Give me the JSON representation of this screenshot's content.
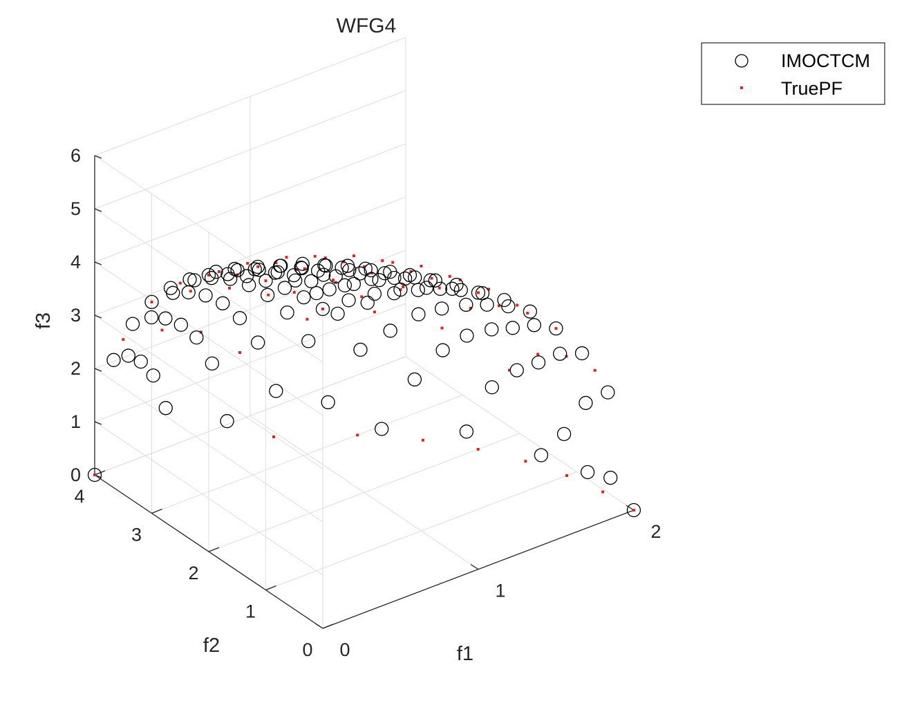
{
  "chart_data": {
    "type": "scatter3d",
    "title": "WFG4",
    "xlabel": "f1",
    "ylabel": "f2",
    "zlabel": "f3",
    "xlim": [
      0,
      2
    ],
    "ylim": [
      0,
      4
    ],
    "zlim": [
      0,
      6
    ],
    "xticks": [
      0,
      1,
      2
    ],
    "yticks": [
      0,
      1,
      2,
      3,
      4
    ],
    "zticks": [
      0,
      1,
      2,
      3,
      4,
      5,
      6
    ],
    "grid": true,
    "box": "back-planes",
    "legend_position": "top-right",
    "pareto_front": "ellipsoid (f1/2)^2 + (f2/4)^2 + (f3/6)^2 = 1, first octant, sampled on 13 x 13 grid",
    "series": [
      {
        "name": "IMOCTCM",
        "marker": "open-circle",
        "color": "#000000",
        "points": [
          [
            0.0,
            0.0,
            6.0
          ],
          [
            0.167,
            0.0,
            5.979
          ],
          [
            0.333,
            0.0,
            5.916
          ],
          [
            0.5,
            0.0,
            5.809
          ],
          [
            0.667,
            0.0,
            5.657
          ],
          [
            0.833,
            0.0,
            5.454
          ],
          [
            1.0,
            0.0,
            5.196
          ],
          [
            1.167,
            0.0,
            4.873
          ],
          [
            1.333,
            0.0,
            4.472
          ],
          [
            1.5,
            0.0,
            3.969
          ],
          [
            1.667,
            0.0,
            3.317
          ],
          [
            1.833,
            0.0,
            2.398
          ],
          [
            2.0,
            0.0,
            0.0
          ],
          [
            0.0,
            0.333,
            5.979
          ],
          [
            0.161,
            0.322,
            5.958
          ],
          [
            0.315,
            0.315,
            5.893
          ],
          [
            0.48,
            0.32,
            5.78
          ],
          [
            0.648,
            0.324,
            5.619
          ],
          [
            0.812,
            0.325,
            5.404
          ],
          [
            0.98,
            0.327,
            5.13
          ],
          [
            1.147,
            0.328,
            4.786
          ],
          [
            1.313,
            0.328,
            4.356
          ],
          [
            1.48,
            0.329,
            3.817
          ],
          [
            1.646,
            0.329,
            3.094
          ],
          [
            1.812,
            0.33,
            1.985
          ],
          [
            1.972,
            0.332,
            0.4
          ],
          [
            0.0,
            0.667,
            5.916
          ],
          [
            0.158,
            0.633,
            5.89
          ],
          [
            0.313,
            0.626,
            5.815
          ],
          [
            0.469,
            0.625,
            5.697
          ],
          [
            0.628,
            0.628,
            5.522
          ],
          [
            0.792,
            0.633,
            5.3
          ],
          [
            0.958,
            0.639,
            5.012
          ],
          [
            1.124,
            0.643,
            4.645
          ],
          [
            1.293,
            0.646,
            4.18
          ],
          [
            1.459,
            0.648,
            3.558
          ],
          [
            1.625,
            0.649,
            2.723
          ],
          [
            1.79,
            0.65,
            1.195
          ],
          [
            1.945,
            0.66,
            0.3
          ],
          [
            0.0,
            1.0,
            5.809
          ],
          [
            0.155,
            0.93,
            5.792
          ],
          [
            0.305,
            0.915,
            5.72
          ],
          [
            0.46,
            0.92,
            5.6
          ],
          [
            0.61,
            0.915,
            5.42
          ],
          [
            0.77,
            0.92,
            5.18
          ],
          [
            0.935,
            0.935,
            4.88
          ],
          [
            1.1,
            0.94,
            4.48
          ],
          [
            1.268,
            0.945,
            3.99
          ],
          [
            1.434,
            0.95,
            3.34
          ],
          [
            1.6,
            0.96,
            2.38
          ],
          [
            1.76,
            0.97,
            0.6
          ],
          [
            0.0,
            1.333,
            5.657
          ],
          [
            0.15,
            1.2,
            5.66
          ],
          [
            0.3,
            1.2,
            5.58
          ],
          [
            0.45,
            1.2,
            5.46
          ],
          [
            0.6,
            1.2,
            5.28
          ],
          [
            0.75,
            1.2,
            5.03
          ],
          [
            0.9,
            1.2,
            4.72
          ],
          [
            1.06,
            1.22,
            4.3
          ],
          [
            1.22,
            1.24,
            3.76
          ],
          [
            1.385,
            1.25,
            3.06
          ],
          [
            1.55,
            1.26,
            1.9
          ],
          [
            0.0,
            1.667,
            5.454
          ],
          [
            0.14,
            1.5,
            5.5
          ],
          [
            0.28,
            1.5,
            5.42
          ],
          [
            0.42,
            1.5,
            5.3
          ],
          [
            0.57,
            1.5,
            5.1
          ],
          [
            0.72,
            1.5,
            4.85
          ],
          [
            0.87,
            1.52,
            4.5
          ],
          [
            1.02,
            1.53,
            4.06
          ],
          [
            1.18,
            1.54,
            3.48
          ],
          [
            1.34,
            1.55,
            2.62
          ],
          [
            1.5,
            1.57,
            0.9
          ],
          [
            0.0,
            2.0,
            5.196
          ],
          [
            0.13,
            1.85,
            5.25
          ],
          [
            0.26,
            1.85,
            5.17
          ],
          [
            0.4,
            1.84,
            5.04
          ],
          [
            0.54,
            1.84,
            4.84
          ],
          [
            0.68,
            1.84,
            4.56
          ],
          [
            0.82,
            1.85,
            4.2
          ],
          [
            0.97,
            1.86,
            3.7
          ],
          [
            1.12,
            1.87,
            3.0
          ],
          [
            1.28,
            1.88,
            1.9
          ],
          [
            0.0,
            2.333,
            4.873
          ],
          [
            0.12,
            2.2,
            4.98
          ],
          [
            0.24,
            2.2,
            4.9
          ],
          [
            0.37,
            2.2,
            4.75
          ],
          [
            0.5,
            2.2,
            4.54
          ],
          [
            0.63,
            2.2,
            4.25
          ],
          [
            0.77,
            2.21,
            3.85
          ],
          [
            0.91,
            2.22,
            3.3
          ],
          [
            1.06,
            2.23,
            2.45
          ],
          [
            1.2,
            2.24,
            0.8
          ],
          [
            0.0,
            2.667,
            4.472
          ],
          [
            0.11,
            2.55,
            4.58
          ],
          [
            0.22,
            2.55,
            4.5
          ],
          [
            0.34,
            2.55,
            4.35
          ],
          [
            0.46,
            2.55,
            4.1
          ],
          [
            0.58,
            2.55,
            3.78
          ],
          [
            0.71,
            2.56,
            3.3
          ],
          [
            0.85,
            2.57,
            2.6
          ],
          [
            0.98,
            2.58,
            1.3
          ],
          [
            0.0,
            3.0,
            3.969
          ],
          [
            0.1,
            2.9,
            4.1
          ],
          [
            0.2,
            2.9,
            4.0
          ],
          [
            0.31,
            2.9,
            3.82
          ],
          [
            0.42,
            2.9,
            3.55
          ],
          [
            0.53,
            2.9,
            3.15
          ],
          [
            0.65,
            2.91,
            2.55
          ],
          [
            0.77,
            2.92,
            1.5
          ],
          [
            0.0,
            3.333,
            3.317
          ],
          [
            0.09,
            3.25,
            3.4
          ],
          [
            0.18,
            3.25,
            3.28
          ],
          [
            0.28,
            3.25,
            3.05
          ],
          [
            0.38,
            3.25,
            2.7
          ],
          [
            0.48,
            3.25,
            2.1
          ],
          [
            0.58,
            3.26,
            0.9
          ],
          [
            0.0,
            3.667,
            2.398
          ],
          [
            0.07,
            3.6,
            2.45
          ],
          [
            0.15,
            3.6,
            2.25
          ],
          [
            0.23,
            3.6,
            1.9
          ],
          [
            0.31,
            3.6,
            1.2
          ],
          [
            0.0,
            4.0,
            0.0
          ]
        ]
      },
      {
        "name": "TruePF",
        "marker": "dot",
        "color": "#d62728",
        "points": [
          [
            0.0,
            0.0,
            6.0
          ],
          [
            0.25,
            0.0,
            5.953
          ],
          [
            0.5,
            0.0,
            5.809
          ],
          [
            0.75,
            0.0,
            5.562
          ],
          [
            1.0,
            0.0,
            5.196
          ],
          [
            1.25,
            0.0,
            4.684
          ],
          [
            1.5,
            0.0,
            3.969
          ],
          [
            1.75,
            0.0,
            2.905
          ],
          [
            2.0,
            0.0,
            0.0
          ],
          [
            0.0,
            0.5,
            5.953
          ],
          [
            0.25,
            0.5,
            5.905
          ],
          [
            0.5,
            0.5,
            5.76
          ],
          [
            0.75,
            0.5,
            5.511
          ],
          [
            1.0,
            0.5,
            5.142
          ],
          [
            1.25,
            0.5,
            4.624
          ],
          [
            1.5,
            0.5,
            3.897
          ],
          [
            1.75,
            0.5,
            2.806
          ],
          [
            1.984,
            0.5,
            0.0
          ],
          [
            0.0,
            1.0,
            5.809
          ],
          [
            0.25,
            1.0,
            5.759
          ],
          [
            0.5,
            1.0,
            5.61
          ],
          [
            0.75,
            1.0,
            5.354
          ],
          [
            1.0,
            1.0,
            4.975
          ],
          [
            1.25,
            1.0,
            4.437
          ],
          [
            1.5,
            1.0,
            3.674
          ],
          [
            1.75,
            1.0,
            2.487
          ],
          [
            1.936,
            1.0,
            0.0
          ],
          [
            0.0,
            1.5,
            5.562
          ],
          [
            0.25,
            1.5,
            5.51
          ],
          [
            0.5,
            1.5,
            5.354
          ],
          [
            0.75,
            1.5,
            5.085
          ],
          [
            1.0,
            1.5,
            4.684
          ],
          [
            1.25,
            1.5,
            4.108
          ],
          [
            1.5,
            1.5,
            3.269
          ],
          [
            1.75,
            1.5,
            1.826
          ],
          [
            1.854,
            1.5,
            0.0
          ],
          [
            0.0,
            2.0,
            5.196
          ],
          [
            0.25,
            2.0,
            5.14
          ],
          [
            0.5,
            2.0,
            4.975
          ],
          [
            0.75,
            2.0,
            4.686
          ],
          [
            1.0,
            2.0,
            4.243
          ],
          [
            1.25,
            2.0,
            3.586
          ],
          [
            1.5,
            2.0,
            2.535
          ],
          [
            1.732,
            2.0,
            0.0
          ],
          [
            0.0,
            2.5,
            4.684
          ],
          [
            0.25,
            2.5,
            4.622
          ],
          [
            0.5,
            2.5,
            4.437
          ],
          [
            0.75,
            2.5,
            4.108
          ],
          [
            1.0,
            2.5,
            3.586
          ],
          [
            1.25,
            2.5,
            2.754
          ],
          [
            1.561,
            2.5,
            0.0
          ],
          [
            0.0,
            3.0,
            3.969
          ],
          [
            0.25,
            3.0,
            3.895
          ],
          [
            0.5,
            3.0,
            3.674
          ],
          [
            0.75,
            3.0,
            3.269
          ],
          [
            1.0,
            3.0,
            2.535
          ],
          [
            1.323,
            3.0,
            0.0
          ],
          [
            0.0,
            3.5,
            2.905
          ],
          [
            0.25,
            3.5,
            2.803
          ],
          [
            0.5,
            3.5,
            2.487
          ],
          [
            0.75,
            3.5,
            1.826
          ],
          [
            0.968,
            3.5,
            0.0
          ],
          [
            0.0,
            4.0,
            0.0
          ]
        ]
      }
    ]
  }
}
